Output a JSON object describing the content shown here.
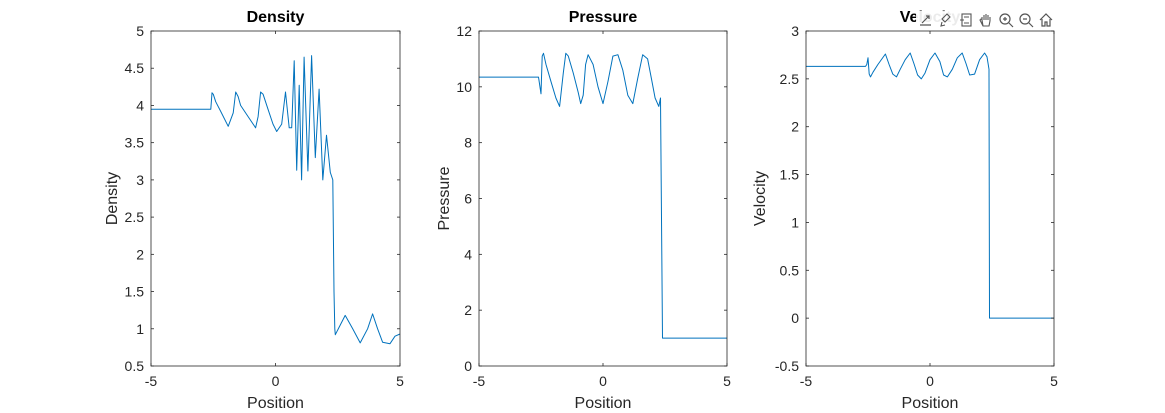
{
  "toolbar": {
    "icons": [
      "export-icon",
      "brush-icon",
      "datatip-icon",
      "pan-icon",
      "zoom-in-icon",
      "zoom-out-icon",
      "home-icon"
    ]
  },
  "line_color": "#0072bd",
  "chart_data": [
    {
      "type": "line",
      "title": "Density",
      "xlabel": "Position",
      "ylabel": "Density",
      "xlim": [
        -5,
        5
      ],
      "ylim": [
        0.5,
        5
      ],
      "xticks": [
        -5,
        0,
        5
      ],
      "yticks": [
        0.5,
        1,
        1.5,
        2,
        2.5,
        3,
        3.5,
        4,
        4.5,
        5
      ],
      "xtick_labels": [
        "-5",
        "0",
        "5"
      ],
      "ytick_labels": [
        "0.5",
        "1",
        "1.5",
        "2",
        "2.5",
        "3",
        "3.5",
        "4",
        "4.5",
        "5"
      ],
      "grid": false,
      "series": [
        {
          "x": [
            -5,
            -2.6,
            -2.55,
            -2.5,
            -2.4,
            -2.2,
            -1.9,
            -1.7,
            -1.6,
            -1.5,
            -1.4,
            -1.1,
            -0.8,
            -0.7,
            -0.6,
            -0.5,
            -0.3,
            -0.1,
            0.05,
            0.25,
            0.4,
            0.55,
            0.65,
            0.75,
            0.85,
            0.95,
            1.05,
            1.15,
            1.3,
            1.45,
            1.6,
            1.75,
            1.9,
            2.05,
            2.2,
            2.3,
            2.35,
            2.38,
            2.4,
            2.6,
            2.8,
            3.1,
            3.4,
            3.7,
            3.9,
            4.1,
            4.3,
            4.6,
            4.8,
            5
          ],
          "y": [
            3.95,
            3.95,
            4.17,
            4.15,
            4.05,
            3.92,
            3.72,
            3.9,
            4.18,
            4.12,
            4.0,
            3.85,
            3.7,
            3.85,
            4.18,
            4.15,
            3.95,
            3.75,
            3.65,
            3.75,
            4.18,
            3.7,
            3.7,
            4.6,
            3.13,
            4.27,
            3.0,
            4.65,
            3.12,
            4.67,
            3.3,
            4.22,
            3.0,
            3.6,
            3.1,
            3.0,
            1.5,
            1.0,
            0.92,
            1.05,
            1.18,
            1.0,
            0.81,
            1.0,
            1.2,
            1.0,
            0.82,
            0.8,
            0.9,
            0.93
          ]
        }
      ]
    },
    {
      "type": "line",
      "title": "Pressure",
      "xlabel": "Position",
      "ylabel": "Pressure",
      "xlim": [
        -5,
        5
      ],
      "ylim": [
        0,
        12
      ],
      "xticks": [
        -5,
        0,
        5
      ],
      "yticks": [
        0,
        2,
        4,
        6,
        8,
        10,
        12
      ],
      "xtick_labels": [
        "-5",
        "0",
        "5"
      ],
      "ytick_labels": [
        "0",
        "2",
        "4",
        "6",
        "8",
        "10",
        "12"
      ],
      "grid": false,
      "series": [
        {
          "x": [
            -5,
            -2.6,
            -2.5,
            -2.45,
            -2.4,
            -2.3,
            -2.1,
            -1.9,
            -1.75,
            -1.6,
            -1.5,
            -1.4,
            -1.2,
            -1.0,
            -0.9,
            -0.8,
            -0.7,
            -0.6,
            -0.4,
            -0.2,
            0.0,
            0.2,
            0.4,
            0.6,
            0.8,
            1.0,
            1.2,
            1.4,
            1.6,
            1.8,
            1.95,
            2.1,
            2.25,
            2.32,
            2.4,
            2.45,
            5
          ],
          "y": [
            10.35,
            10.35,
            9.75,
            11.1,
            11.2,
            10.8,
            10.2,
            9.6,
            9.3,
            10.5,
            11.2,
            11.1,
            10.5,
            9.8,
            9.4,
            9.7,
            10.8,
            11.15,
            10.8,
            10.0,
            9.4,
            10.2,
            11.1,
            11.15,
            10.6,
            9.7,
            9.4,
            10.3,
            11.15,
            11.0,
            10.3,
            9.6,
            9.3,
            9.6,
            1.0,
            1.0,
            1.0
          ]
        }
      ]
    },
    {
      "type": "line",
      "title": "Velocity",
      "xlabel": "Position",
      "ylabel": "Velocity",
      "xlim": [
        -5,
        5
      ],
      "ylim": [
        -0.5,
        3
      ],
      "xticks": [
        -5,
        0,
        5
      ],
      "yticks": [
        -0.5,
        0,
        0.5,
        1,
        1.5,
        2,
        2.5,
        3
      ],
      "xtick_labels": [
        "-5",
        "0",
        "5"
      ],
      "ytick_labels": [
        "-0.5",
        "0",
        "0.5",
        "1",
        "1.5",
        "2",
        "2.5",
        "3"
      ],
      "grid": false,
      "series": [
        {
          "x": [
            -5,
            -2.6,
            -2.55,
            -2.5,
            -2.45,
            -2.4,
            -2.3,
            -2.1,
            -1.8,
            -1.65,
            -1.5,
            -1.35,
            -1.2,
            -1.0,
            -0.8,
            -0.65,
            -0.5,
            -0.35,
            -0.2,
            0.0,
            0.2,
            0.4,
            0.55,
            0.7,
            0.9,
            1.1,
            1.3,
            1.45,
            1.6,
            1.8,
            2.0,
            2.2,
            2.3,
            2.38,
            2.4,
            2.45,
            5
          ],
          "y": [
            2.63,
            2.63,
            2.65,
            2.72,
            2.55,
            2.52,
            2.57,
            2.65,
            2.76,
            2.65,
            2.55,
            2.52,
            2.6,
            2.7,
            2.77,
            2.66,
            2.54,
            2.5,
            2.56,
            2.7,
            2.77,
            2.68,
            2.54,
            2.52,
            2.6,
            2.72,
            2.77,
            2.66,
            2.54,
            2.55,
            2.7,
            2.77,
            2.73,
            2.6,
            0.0,
            0.0,
            0.0
          ]
        }
      ]
    }
  ]
}
